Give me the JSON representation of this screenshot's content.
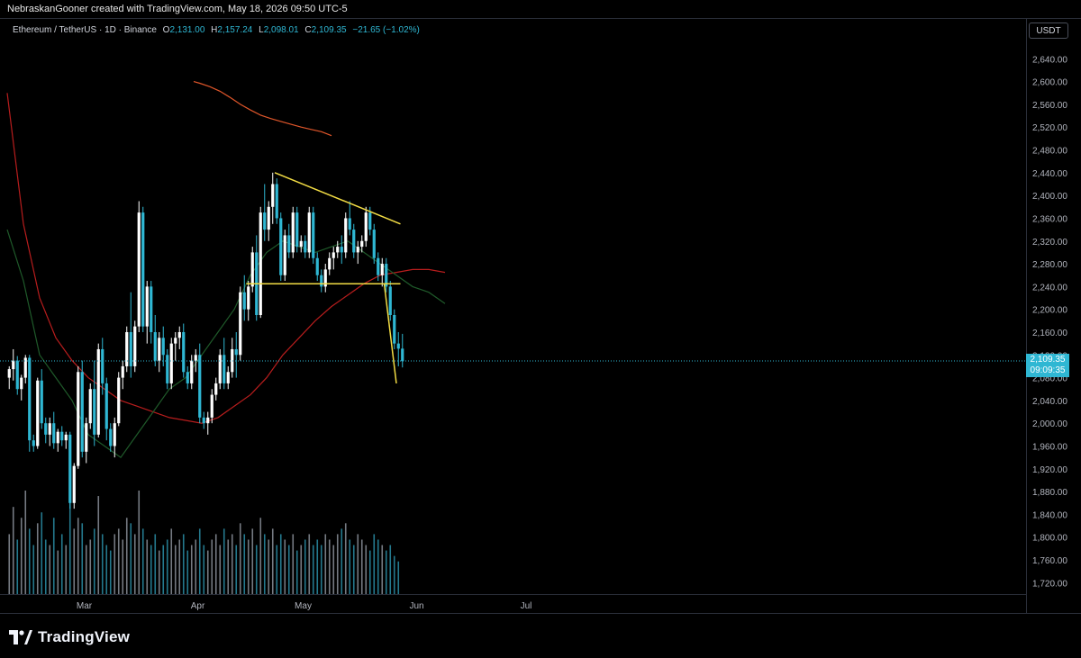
{
  "header": {
    "credit": "NebraskanGooner created with TradingView.com, May 18, 2026 09:50 UTC-5"
  },
  "legend": {
    "symbol": "Ethereum / TetherUS · 1D · Binance",
    "o_label": "O",
    "o": "2,131.00",
    "h_label": "H",
    "h": "2,157.24",
    "l_label": "L",
    "l": "2,098.01",
    "c_label": "C",
    "c": "2,109.35",
    "change": "−21.65 (−1.02%)"
  },
  "currency_button": "USDT",
  "last_price": {
    "price": "2,109.35",
    "countdown": "09:09:35"
  },
  "brand": {
    "name": "TradingView"
  },
  "colors": {
    "up": "#ffffff",
    "down": "#2fb7d3",
    "ma_long": "#e0562a",
    "ma_mid": "#b81d1d",
    "ma_short": "#1f5a2a",
    "trendline": "#f2dc44",
    "price_line": "#2fb7d3"
  },
  "chart_data": {
    "type": "candlestick",
    "title": "Ethereum / TetherUS · 1D · Binance",
    "xlabel": "",
    "ylabel": "",
    "ylim": [
      1700,
      2680
    ],
    "grid": false,
    "y_ticks": [
      1720,
      1760,
      1800,
      1840,
      1880,
      1920,
      1960,
      2000,
      2040,
      2080,
      2120,
      2160,
      2200,
      2240,
      2280,
      2320,
      2360,
      2400,
      2440,
      2480,
      2520,
      2560,
      2600,
      2640
    ],
    "y_tick_labels": [
      "1,720.00",
      "1,760.00",
      "1,800.00",
      "1,840.00",
      "1,880.00",
      "1,920.00",
      "1,960.00",
      "2,000.00",
      "2,040.00",
      "2,080.00",
      "2,120.00",
      "2,160.00",
      "2,200.00",
      "2,240.00",
      "2,280.00",
      "2,320.00",
      "2,360.00",
      "2,400.00",
      "2,440.00",
      "2,480.00",
      "2,520.00",
      "2,560.00",
      "2,600.00",
      "2,640.00"
    ],
    "x_ticks": [
      {
        "label": "Mar",
        "index": 19
      },
      {
        "label": "Apr",
        "index": 47
      },
      {
        "label": "May",
        "index": 73
      },
      {
        "label": "Jun",
        "index": 101
      },
      {
        "label": "Jul",
        "index": 128
      }
    ],
    "ohlc": [
      [
        2080,
        2100,
        2060,
        2095
      ],
      [
        2095,
        2130,
        2075,
        2110
      ],
      [
        2110,
        2118,
        2050,
        2060
      ],
      [
        2060,
        2085,
        2040,
        2080
      ],
      [
        2080,
        2120,
        2070,
        2115
      ],
      [
        2115,
        2120,
        1950,
        1970
      ],
      [
        1970,
        1980,
        1950,
        1960
      ],
      [
        1960,
        2080,
        1955,
        2075
      ],
      [
        2075,
        2095,
        1990,
        2000
      ],
      [
        2000,
        2010,
        1965,
        1980
      ],
      [
        1980,
        2010,
        1960,
        2000
      ],
      [
        2000,
        2020,
        1955,
        1965
      ],
      [
        1965,
        1990,
        1950,
        1985
      ],
      [
        1985,
        1995,
        1960,
        1970
      ],
      [
        1970,
        1985,
        1955,
        1980
      ],
      [
        1980,
        1985,
        1850,
        1860
      ],
      [
        1860,
        1930,
        1850,
        1925
      ],
      [
        1925,
        2100,
        1920,
        2090
      ],
      [
        2090,
        2110,
        1940,
        1950
      ],
      [
        1950,
        2010,
        1930,
        2000
      ],
      [
        2000,
        2070,
        1990,
        2060
      ],
      [
        2060,
        2110,
        1960,
        1980
      ],
      [
        1980,
        2140,
        1975,
        2130
      ],
      [
        2130,
        2150,
        2050,
        2070
      ],
      [
        2070,
        2080,
        1970,
        1990
      ],
      [
        1990,
        2000,
        1950,
        1960
      ],
      [
        1960,
        2010,
        1940,
        2000
      ],
      [
        2000,
        2090,
        1995,
        2080
      ],
      [
        2080,
        2110,
        2060,
        2100
      ],
      [
        2100,
        2170,
        2090,
        2160
      ],
      [
        2160,
        2230,
        2080,
        2100
      ],
      [
        2100,
        2180,
        2090,
        2170
      ],
      [
        2170,
        2390,
        2160,
        2370
      ],
      [
        2370,
        2380,
        2160,
        2170
      ],
      [
        2170,
        2250,
        2140,
        2240
      ],
      [
        2240,
        2250,
        2140,
        2160
      ],
      [
        2160,
        2190,
        2100,
        2110
      ],
      [
        2110,
        2160,
        2090,
        2150
      ],
      [
        2150,
        2170,
        2100,
        2120
      ],
      [
        2120,
        2130,
        2060,
        2070
      ],
      [
        2070,
        2150,
        2060,
        2140
      ],
      [
        2140,
        2160,
        2110,
        2150
      ],
      [
        2150,
        2170,
        2130,
        2160
      ],
      [
        2160,
        2175,
        2080,
        2090
      ],
      [
        2090,
        2100,
        2060,
        2070
      ],
      [
        2070,
        2120,
        2060,
        2110
      ],
      [
        2110,
        2130,
        2090,
        2120
      ],
      [
        2120,
        2140,
        2000,
        2010
      ],
      [
        2010,
        2020,
        1990,
        2000
      ],
      [
        2000,
        2020,
        1980,
        2010
      ],
      [
        2010,
        2060,
        2000,
        2050
      ],
      [
        2050,
        2080,
        2040,
        2070
      ],
      [
        2070,
        2130,
        2060,
        2120
      ],
      [
        2120,
        2150,
        2060,
        2070
      ],
      [
        2070,
        2100,
        2060,
        2090
      ],
      [
        2090,
        2150,
        2080,
        2130
      ],
      [
        2130,
        2160,
        2080,
        2120
      ],
      [
        2120,
        2240,
        2110,
        2230
      ],
      [
        2230,
        2260,
        2180,
        2200
      ],
      [
        2200,
        2250,
        2180,
        2240
      ],
      [
        2240,
        2310,
        2230,
        2300
      ],
      [
        2300,
        2330,
        2180,
        2190
      ],
      [
        2190,
        2380,
        2185,
        2370
      ],
      [
        2370,
        2420,
        2320,
        2340
      ],
      [
        2340,
        2390,
        2320,
        2380
      ],
      [
        2380,
        2440,
        2350,
        2420
      ],
      [
        2420,
        2430,
        2350,
        2360
      ],
      [
        2360,
        2370,
        2250,
        2260
      ],
      [
        2260,
        2340,
        2250,
        2330
      ],
      [
        2330,
        2350,
        2290,
        2300
      ],
      [
        2300,
        2380,
        2290,
        2370
      ],
      [
        2370,
        2380,
        2300,
        2310
      ],
      [
        2310,
        2330,
        2300,
        2320
      ],
      [
        2320,
        2330,
        2290,
        2300
      ],
      [
        2300,
        2380,
        2290,
        2370
      ],
      [
        2370,
        2380,
        2280,
        2290
      ],
      [
        2290,
        2300,
        2250,
        2260
      ],
      [
        2260,
        2270,
        2230,
        2240
      ],
      [
        2240,
        2280,
        2230,
        2270
      ],
      [
        2270,
        2300,
        2260,
        2290
      ],
      [
        2290,
        2310,
        2270,
        2300
      ],
      [
        2300,
        2320,
        2290,
        2310
      ],
      [
        2310,
        2330,
        2280,
        2300
      ],
      [
        2300,
        2370,
        2290,
        2360
      ],
      [
        2360,
        2390,
        2330,
        2340
      ],
      [
        2340,
        2350,
        2290,
        2300
      ],
      [
        2300,
        2320,
        2280,
        2310
      ],
      [
        2310,
        2330,
        2300,
        2320
      ],
      [
        2320,
        2380,
        2310,
        2370
      ],
      [
        2370,
        2380,
        2330,
        2340
      ],
      [
        2340,
        2350,
        2280,
        2290
      ],
      [
        2290,
        2300,
        2250,
        2260
      ],
      [
        2260,
        2290,
        2240,
        2280
      ],
      [
        2280,
        2290,
        2230,
        2240
      ],
      [
        2240,
        2250,
        2180,
        2190
      ],
      [
        2190,
        2200,
        2130,
        2140
      ],
      [
        2140,
        2160,
        2100,
        2131
      ],
      [
        2131,
        2157,
        2098,
        2109
      ]
    ],
    "volume": [
      55,
      80,
      50,
      70,
      95,
      60,
      45,
      65,
      75,
      50,
      45,
      70,
      40,
      55,
      45,
      85,
      60,
      70,
      65,
      45,
      50,
      60,
      90,
      55,
      45,
      40,
      55,
      60,
      50,
      70,
      65,
      55,
      95,
      60,
      50,
      45,
      55,
      40,
      45,
      50,
      60,
      45,
      50,
      55,
      40,
      45,
      50,
      60,
      45,
      40,
      50,
      55,
      45,
      60,
      50,
      55,
      45,
      65,
      55,
      50,
      60,
      45,
      70,
      55,
      50,
      60,
      45,
      55,
      50,
      45,
      55,
      40,
      45,
      50,
      55,
      45,
      50,
      45,
      55,
      50,
      45,
      55,
      60,
      65,
      50,
      45,
      55,
      50,
      45,
      40,
      55,
      50,
      45,
      40,
      45,
      35,
      30
    ],
    "lines": [
      {
        "kind": "moving-average",
        "color_key": "ma_long",
        "points": [
          [
            92,
            2600
          ],
          [
            95,
            2597
          ],
          [
            100,
            2591
          ],
          [
            105,
            2583
          ],
          [
            110,
            2572
          ],
          [
            115,
            2560
          ],
          [
            120,
            2550
          ],
          [
            125,
            2541
          ],
          [
            130,
            2535
          ],
          [
            135,
            2530
          ],
          [
            140,
            2525
          ],
          [
            145,
            2520
          ],
          [
            150,
            2516
          ],
          [
            155,
            2512
          ],
          [
            160,
            2505
          ]
        ]
      },
      {
        "kind": "moving-average",
        "color_key": "ma_mid",
        "points": [
          [
            0,
            2580
          ],
          [
            8,
            2350
          ],
          [
            16,
            2220
          ],
          [
            24,
            2150
          ],
          [
            32,
            2110
          ],
          [
            40,
            2080
          ],
          [
            48,
            2060
          ],
          [
            56,
            2040
          ],
          [
            64,
            2030
          ],
          [
            72,
            2020
          ],
          [
            80,
            2010
          ],
          [
            88,
            2005
          ],
          [
            96,
            2000
          ],
          [
            104,
            2010
          ],
          [
            112,
            2030
          ],
          [
            120,
            2050
          ],
          [
            128,
            2080
          ],
          [
            136,
            2120
          ],
          [
            144,
            2150
          ],
          [
            152,
            2180
          ],
          [
            160,
            2205
          ],
          [
            168,
            2225
          ],
          [
            176,
            2245
          ],
          [
            184,
            2260
          ],
          [
            192,
            2265
          ],
          [
            200,
            2270
          ],
          [
            208,
            2270
          ],
          [
            216,
            2265
          ]
        ]
      },
      {
        "kind": "moving-average",
        "color_key": "ma_short",
        "points": [
          [
            0,
            2340
          ],
          [
            8,
            2250
          ],
          [
            16,
            2120
          ],
          [
            24,
            2080
          ],
          [
            32,
            2040
          ],
          [
            40,
            1980
          ],
          [
            48,
            1960
          ],
          [
            56,
            1940
          ],
          [
            64,
            1980
          ],
          [
            72,
            2020
          ],
          [
            80,
            2060
          ],
          [
            88,
            2080
          ],
          [
            96,
            2120
          ],
          [
            104,
            2160
          ],
          [
            112,
            2200
          ],
          [
            120,
            2260
          ],
          [
            128,
            2300
          ],
          [
            136,
            2320
          ],
          [
            144,
            2310
          ],
          [
            152,
            2300
          ],
          [
            160,
            2310
          ],
          [
            168,
            2320
          ],
          [
            176,
            2300
          ],
          [
            184,
            2280
          ],
          [
            192,
            2260
          ],
          [
            200,
            2240
          ],
          [
            208,
            2230
          ],
          [
            216,
            2210
          ]
        ]
      }
    ],
    "trendlines": [
      {
        "from": [
          66,
          2440
        ],
        "to": [
          97,
          2350
        ]
      },
      {
        "from": [
          59,
          2245
        ],
        "to": [
          97,
          2245
        ]
      },
      {
        "from": [
          93,
          2245
        ],
        "to": [
          96,
          2070
        ]
      }
    ],
    "last_price": 2109.35
  }
}
